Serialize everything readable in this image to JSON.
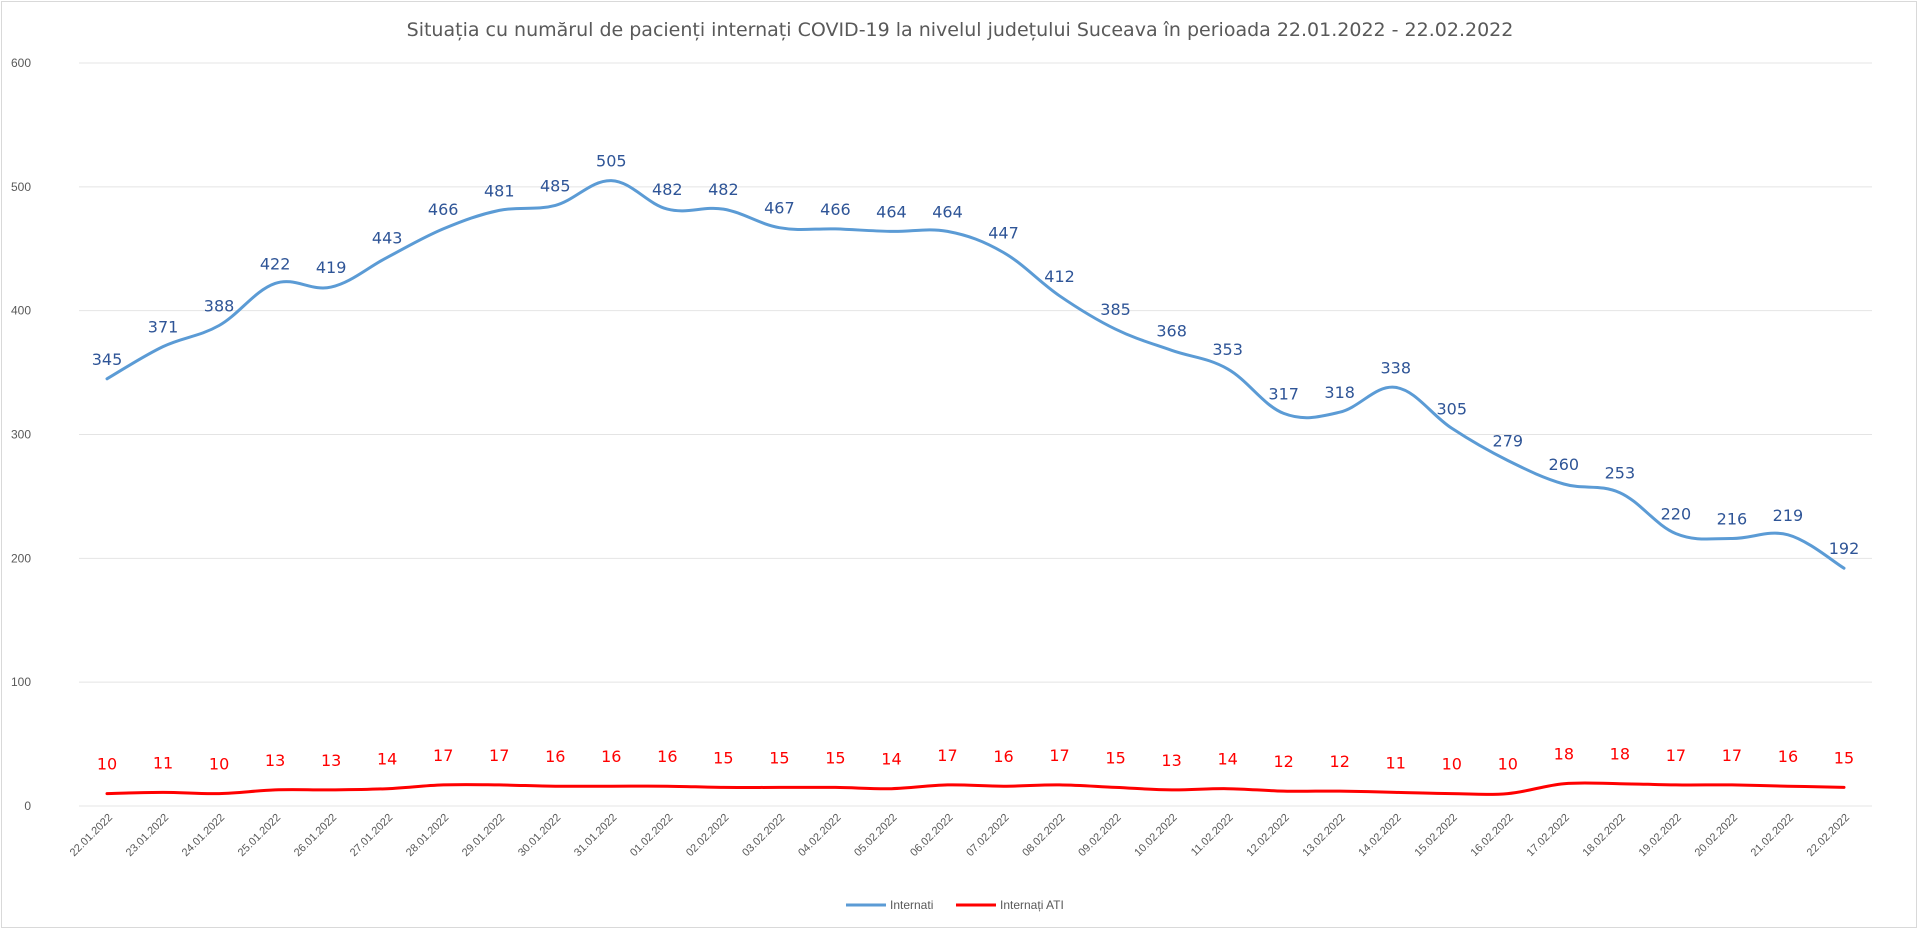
{
  "chart_data": {
    "type": "line",
    "title": "Situația cu numărul de pacienți internați COVID-19 la nivelul județului Suceava în perioada 22.01.2022 - 22.02.2022",
    "xlabel": "",
    "ylabel": "",
    "ylim": [
      0,
      600
    ],
    "yticks": [
      0,
      100,
      200,
      300,
      400,
      500,
      600
    ],
    "grid": true,
    "legend_position": "bottom",
    "categories": [
      "22.01.2022",
      "23.01.2022",
      "24.01.2022",
      "25.01.2022",
      "26.01.2022",
      "27.01.2022",
      "28.01.2022",
      "29.01.2022",
      "30.01.2022",
      "31.01.2022",
      "01.02.2022",
      "02.02.2022",
      "03.02.2022",
      "04.02.2022",
      "05.02.2022",
      "06.02.2022",
      "07.02.2022",
      "08.02.2022",
      "09.02.2022",
      "10.02.2022",
      "11.02.2022",
      "12.02.2022",
      "13.02.2022",
      "14.02.2022",
      "15.02.2022",
      "16.02.2022",
      "17.02.2022",
      "18.02.2022",
      "19.02.2022",
      "20.02.2022",
      "21.02.2022",
      "22.02.2022"
    ],
    "series": [
      {
        "name": "Internati",
        "color": "#5b9bd5",
        "label_color": "#2f5597",
        "values": [
          345,
          371,
          388,
          422,
          419,
          443,
          466,
          481,
          485,
          505,
          482,
          482,
          467,
          466,
          464,
          464,
          447,
          412,
          385,
          368,
          353,
          317,
          318,
          338,
          305,
          279,
          260,
          253,
          220,
          216,
          219,
          192
        ]
      },
      {
        "name": "Internați ATI",
        "color": "#ff0000",
        "label_color": "#ff0000",
        "values": [
          10,
          11,
          10,
          13,
          13,
          14,
          17,
          17,
          16,
          16,
          16,
          15,
          15,
          15,
          14,
          17,
          16,
          17,
          15,
          13,
          14,
          12,
          12,
          11,
          10,
          10,
          18,
          18,
          17,
          17,
          16,
          15
        ]
      }
    ]
  }
}
